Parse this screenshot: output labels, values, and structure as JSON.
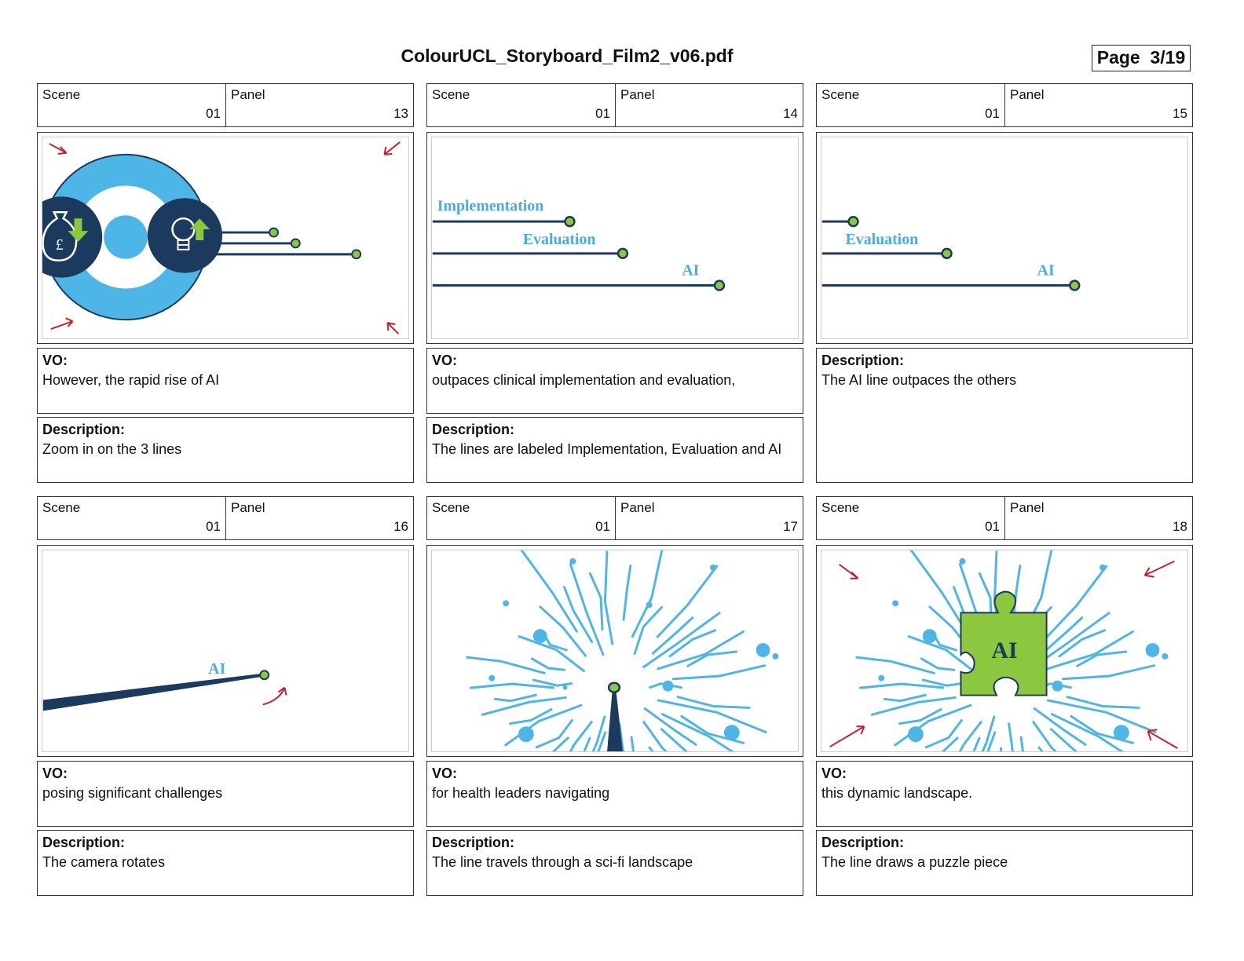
{
  "document": {
    "title": "ColourUCL_Storyboard_Film2_v06.pdf",
    "page_label": "Page",
    "page_number": "3/19"
  },
  "panels": [
    {
      "scene_label": "Scene",
      "scene": "01",
      "panel_label": "Panel",
      "panel": "13",
      "vo_label": "VO:",
      "vo": "However,  the rapid rise of AI",
      "description_label": "Description:",
      "description": "Zoom in on the 3 lines",
      "frame_icons": [
        "money-bag-icon",
        "lightbulb-icon",
        "arrow-down-icon",
        "arrow-up-icon",
        "pound-sign-icon"
      ]
    },
    {
      "scene_label": "Scene",
      "scene": "01",
      "panel_label": "Panel",
      "panel": "14",
      "vo_label": "VO:",
      "vo": "outpaces clinical implementation and evaluation,",
      "description_label": "Description:",
      "description": "The lines are labeled Implementation, Evaluation and AI",
      "frame_labels": [
        "Implementation",
        "Evaluation",
        "AI"
      ]
    },
    {
      "scene_label": "Scene",
      "scene": "01",
      "panel_label": "Panel",
      "panel": "15",
      "description_label": "Description:",
      "description": "The AI line outpaces the others",
      "frame_labels": [
        "Evaluation",
        "AI"
      ]
    },
    {
      "scene_label": "Scene",
      "scene": "01",
      "panel_label": "Panel",
      "panel": "16",
      "vo_label": "VO:",
      "vo": "posing significant challenges",
      "description_label": "Description:",
      "description": "The camera rotates",
      "frame_labels": [
        "AI"
      ]
    },
    {
      "scene_label": "Scene",
      "scene": "01",
      "panel_label": "Panel",
      "panel": "17",
      "vo_label": "VO:",
      "vo": "for health leaders navigating",
      "description_label": "Description:",
      "description": "The line travels through a sci-fi landscape"
    },
    {
      "scene_label": "Scene",
      "scene": "01",
      "panel_label": "Panel",
      "panel": "18",
      "vo_label": "VO:",
      "vo": "this dynamic landscape.",
      "description_label": "Description:",
      "description": "The line draws a puzzle piece",
      "frame_labels": [
        "AI"
      ],
      "frame_icons": [
        "puzzle-piece-icon"
      ]
    }
  ],
  "colors": {
    "light_blue": "#4db6e6",
    "dark_navy": "#1b3a5e",
    "lime_green": "#8dc63f",
    "annotation_red": "#c8202a",
    "label_blue": "#45ade0"
  }
}
